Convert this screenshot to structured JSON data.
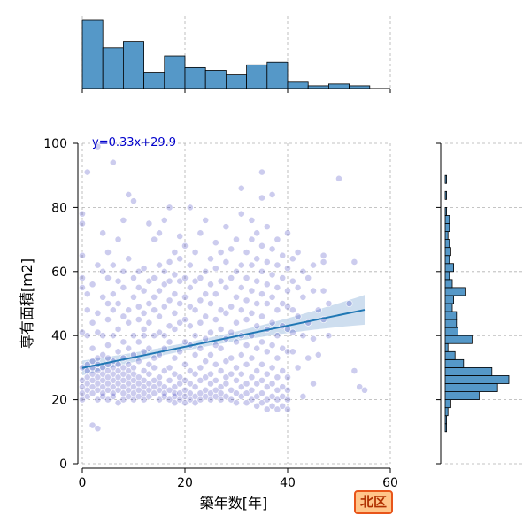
{
  "chart_data": {
    "type": "scatter",
    "xlabel": "築年数[年]",
    "ylabel": "専有面積[m2]",
    "xlim": [
      0,
      60
    ],
    "ylim": [
      0,
      100
    ],
    "xticks": [
      0,
      20,
      40,
      60
    ],
    "yticks": [
      0,
      20,
      40,
      60,
      80,
      100
    ],
    "grid": true,
    "regression": {
      "slope": 0.33,
      "intercept": 29.9,
      "x_range": [
        0,
        55
      ],
      "label": "y=0.33x+29.9"
    },
    "points": [
      [
        0,
        20
      ],
      [
        0,
        22
      ],
      [
        0,
        24
      ],
      [
        0,
        26
      ],
      [
        0,
        30
      ],
      [
        0,
        41
      ],
      [
        0,
        55
      ],
      [
        0,
        58
      ],
      [
        0,
        65
      ],
      [
        0,
        75
      ],
      [
        0,
        78
      ],
      [
        1,
        21
      ],
      [
        1,
        23
      ],
      [
        1,
        25
      ],
      [
        1,
        27
      ],
      [
        1,
        29
      ],
      [
        1,
        31
      ],
      [
        1,
        40
      ],
      [
        1,
        48
      ],
      [
        1,
        53
      ],
      [
        1,
        91
      ],
      [
        2,
        22
      ],
      [
        2,
        24
      ],
      [
        2,
        26
      ],
      [
        2,
        28
      ],
      [
        2,
        30
      ],
      [
        2,
        32
      ],
      [
        2,
        36
      ],
      [
        2,
        44
      ],
      [
        2,
        12
      ],
      [
        2,
        56
      ],
      [
        3,
        11
      ],
      [
        3,
        20
      ],
      [
        3,
        23
      ],
      [
        3,
        25
      ],
      [
        3,
        27
      ],
      [
        3,
        29
      ],
      [
        3,
        31
      ],
      [
        3,
        33
      ],
      [
        3,
        41
      ],
      [
        3,
        47
      ],
      [
        3,
        62
      ],
      [
        3,
        99
      ],
      [
        4,
        21
      ],
      [
        4,
        22
      ],
      [
        4,
        24
      ],
      [
        4,
        26
      ],
      [
        4,
        28
      ],
      [
        4,
        30
      ],
      [
        4,
        34
      ],
      [
        4,
        40
      ],
      [
        4,
        52
      ],
      [
        4,
        60
      ],
      [
        4,
        72
      ],
      [
        5,
        20
      ],
      [
        5,
        23
      ],
      [
        5,
        25
      ],
      [
        5,
        27
      ],
      [
        5,
        29
      ],
      [
        5,
        31
      ],
      [
        5,
        33
      ],
      [
        5,
        37
      ],
      [
        5,
        45
      ],
      [
        5,
        50
      ],
      [
        5,
        58
      ],
      [
        5,
        66
      ],
      [
        6,
        21
      ],
      [
        6,
        22
      ],
      [
        6,
        24
      ],
      [
        6,
        26
      ],
      [
        6,
        28
      ],
      [
        6,
        30
      ],
      [
        6,
        32
      ],
      [
        6,
        40
      ],
      [
        6,
        48
      ],
      [
        6,
        53
      ],
      [
        6,
        62
      ],
      [
        6,
        94
      ],
      [
        7,
        19
      ],
      [
        7,
        23
      ],
      [
        7,
        25
      ],
      [
        7,
        27
      ],
      [
        7,
        29
      ],
      [
        7,
        31
      ],
      [
        7,
        35
      ],
      [
        7,
        42
      ],
      [
        7,
        50
      ],
      [
        7,
        57
      ],
      [
        7,
        70
      ],
      [
        8,
        20
      ],
      [
        8,
        22
      ],
      [
        8,
        24
      ],
      [
        8,
        26
      ],
      [
        8,
        28
      ],
      [
        8,
        30
      ],
      [
        8,
        33
      ],
      [
        8,
        38
      ],
      [
        8,
        46
      ],
      [
        8,
        55
      ],
      [
        8,
        60
      ],
      [
        8,
        76
      ],
      [
        9,
        21
      ],
      [
        9,
        23
      ],
      [
        9,
        25
      ],
      [
        9,
        27
      ],
      [
        9,
        29
      ],
      [
        9,
        31
      ],
      [
        9,
        36
      ],
      [
        9,
        44
      ],
      [
        9,
        48
      ],
      [
        9,
        64
      ],
      [
        9,
        84
      ],
      [
        10,
        20
      ],
      [
        10,
        22
      ],
      [
        10,
        24
      ],
      [
        10,
        26
      ],
      [
        10,
        28
      ],
      [
        10,
        30
      ],
      [
        10,
        34
      ],
      [
        10,
        40
      ],
      [
        10,
        52
      ],
      [
        10,
        58
      ],
      [
        10,
        82
      ],
      [
        11,
        21
      ],
      [
        11,
        23
      ],
      [
        11,
        25
      ],
      [
        11,
        27
      ],
      [
        11,
        32
      ],
      [
        11,
        38
      ],
      [
        11,
        45
      ],
      [
        11,
        49
      ],
      [
        11,
        55
      ],
      [
        11,
        60
      ],
      [
        12,
        20
      ],
      [
        12,
        22
      ],
      [
        12,
        24
      ],
      [
        12,
        26
      ],
      [
        12,
        29
      ],
      [
        12,
        35
      ],
      [
        12,
        40
      ],
      [
        12,
        42
      ],
      [
        12,
        47
      ],
      [
        12,
        54
      ],
      [
        12,
        61
      ],
      [
        13,
        21
      ],
      [
        13,
        23
      ],
      [
        13,
        25
      ],
      [
        13,
        28
      ],
      [
        13,
        31
      ],
      [
        13,
        36
      ],
      [
        13,
        44
      ],
      [
        13,
        50
      ],
      [
        13,
        57
      ],
      [
        13,
        75
      ],
      [
        14,
        22
      ],
      [
        14,
        24
      ],
      [
        14,
        26
      ],
      [
        14,
        30
      ],
      [
        14,
        33
      ],
      [
        14,
        40
      ],
      [
        14,
        48
      ],
      [
        14,
        52
      ],
      [
        14,
        58
      ],
      [
        14,
        70
      ],
      [
        15,
        20
      ],
      [
        15,
        23
      ],
      [
        15,
        25
      ],
      [
        15,
        27
      ],
      [
        15,
        34
      ],
      [
        15,
        41
      ],
      [
        15,
        46
      ],
      [
        15,
        54
      ],
      [
        15,
        62
      ],
      [
        15,
        72
      ],
      [
        16,
        21
      ],
      [
        16,
        22
      ],
      [
        16,
        24
      ],
      [
        16,
        29
      ],
      [
        16,
        36
      ],
      [
        16,
        40
      ],
      [
        16,
        49
      ],
      [
        16,
        56
      ],
      [
        16,
        60
      ],
      [
        16,
        76
      ],
      [
        17,
        20
      ],
      [
        17,
        23
      ],
      [
        17,
        26
      ],
      [
        17,
        30
      ],
      [
        17,
        38
      ],
      [
        17,
        43
      ],
      [
        17,
        51
      ],
      [
        17,
        57
      ],
      [
        17,
        63
      ],
      [
        17,
        80
      ],
      [
        18,
        19
      ],
      [
        18,
        21
      ],
      [
        18,
        22
      ],
      [
        18,
        24
      ],
      [
        18,
        28
      ],
      [
        18,
        33
      ],
      [
        18,
        42
      ],
      [
        18,
        47
      ],
      [
        18,
        53
      ],
      [
        18,
        59
      ],
      [
        18,
        66
      ],
      [
        19,
        20
      ],
      [
        19,
        22
      ],
      [
        19,
        25
      ],
      [
        19,
        27
      ],
      [
        19,
        35
      ],
      [
        19,
        44
      ],
      [
        19,
        50
      ],
      [
        19,
        57
      ],
      [
        19,
        64
      ],
      [
        19,
        71
      ],
      [
        20,
        19
      ],
      [
        20,
        21
      ],
      [
        20,
        23
      ],
      [
        20,
        26
      ],
      [
        20,
        31
      ],
      [
        20,
        38
      ],
      [
        20,
        45
      ],
      [
        20,
        52
      ],
      [
        20,
        58
      ],
      [
        20,
        68
      ],
      [
        21,
        20
      ],
      [
        21,
        22
      ],
      [
        21,
        25
      ],
      [
        21,
        29
      ],
      [
        21,
        37
      ],
      [
        21,
        43
      ],
      [
        21,
        49
      ],
      [
        21,
        55
      ],
      [
        21,
        62
      ],
      [
        21,
        80
      ],
      [
        22,
        19
      ],
      [
        22,
        21
      ],
      [
        22,
        24
      ],
      [
        22,
        28
      ],
      [
        22,
        34
      ],
      [
        22,
        40
      ],
      [
        22,
        48
      ],
      [
        22,
        57
      ],
      [
        22,
        66
      ],
      [
        23,
        20
      ],
      [
        23,
        22
      ],
      [
        23,
        26
      ],
      [
        23,
        30
      ],
      [
        23,
        36
      ],
      [
        23,
        44
      ],
      [
        23,
        51
      ],
      [
        23,
        58
      ],
      [
        23,
        72
      ],
      [
        24,
        21
      ],
      [
        24,
        23
      ],
      [
        24,
        27
      ],
      [
        24,
        32
      ],
      [
        24,
        39
      ],
      [
        24,
        46
      ],
      [
        24,
        53
      ],
      [
        24,
        60
      ],
      [
        24,
        76
      ],
      [
        25,
        20
      ],
      [
        25,
        22
      ],
      [
        25,
        25
      ],
      [
        25,
        28
      ],
      [
        25,
        34
      ],
      [
        25,
        41
      ],
      [
        25,
        50
      ],
      [
        25,
        56
      ],
      [
        25,
        64
      ],
      [
        26,
        21
      ],
      [
        26,
        23
      ],
      [
        26,
        26
      ],
      [
        26,
        31
      ],
      [
        26,
        37
      ],
      [
        26,
        45
      ],
      [
        26,
        53
      ],
      [
        26,
        61
      ],
      [
        26,
        69
      ],
      [
        27,
        20
      ],
      [
        27,
        22
      ],
      [
        27,
        24
      ],
      [
        27,
        29
      ],
      [
        27,
        36
      ],
      [
        27,
        42
      ],
      [
        27,
        48
      ],
      [
        27,
        57
      ],
      [
        27,
        66
      ],
      [
        28,
        21
      ],
      [
        28,
        25
      ],
      [
        28,
        27
      ],
      [
        28,
        32
      ],
      [
        28,
        39
      ],
      [
        28,
        47
      ],
      [
        28,
        55
      ],
      [
        28,
        63
      ],
      [
        28,
        74
      ],
      [
        29,
        20
      ],
      [
        29,
        23
      ],
      [
        29,
        28
      ],
      [
        29,
        33
      ],
      [
        29,
        41
      ],
      [
        29,
        49
      ],
      [
        29,
        58
      ],
      [
        29,
        67
      ],
      [
        30,
        19
      ],
      [
        30,
        22
      ],
      [
        30,
        26
      ],
      [
        30,
        30
      ],
      [
        30,
        38
      ],
      [
        30,
        44
      ],
      [
        30,
        52
      ],
      [
        30,
        60
      ],
      [
        30,
        70
      ],
      [
        31,
        21
      ],
      [
        31,
        24
      ],
      [
        31,
        28
      ],
      [
        31,
        34
      ],
      [
        31,
        40
      ],
      [
        31,
        48
      ],
      [
        31,
        55
      ],
      [
        31,
        62
      ],
      [
        31,
        78
      ],
      [
        31,
        86
      ],
      [
        32,
        19
      ],
      [
        32,
        22
      ],
      [
        32,
        25
      ],
      [
        32,
        31
      ],
      [
        32,
        37
      ],
      [
        32,
        45
      ],
      [
        32,
        51
      ],
      [
        32,
        58
      ],
      [
        32,
        66
      ],
      [
        33,
        20
      ],
      [
        33,
        23
      ],
      [
        33,
        27
      ],
      [
        33,
        33
      ],
      [
        33,
        40
      ],
      [
        33,
        47
      ],
      [
        33,
        54
      ],
      [
        33,
        62
      ],
      [
        33,
        70
      ],
      [
        33,
        76
      ],
      [
        34,
        18
      ],
      [
        34,
        21
      ],
      [
        34,
        25
      ],
      [
        34,
        29
      ],
      [
        34,
        36
      ],
      [
        34,
        43
      ],
      [
        34,
        50
      ],
      [
        34,
        57
      ],
      [
        34,
        64
      ],
      [
        34,
        72
      ],
      [
        35,
        19
      ],
      [
        35,
        22
      ],
      [
        35,
        26
      ],
      [
        35,
        31
      ],
      [
        35,
        38
      ],
      [
        35,
        46
      ],
      [
        35,
        53
      ],
      [
        35,
        60
      ],
      [
        35,
        68
      ],
      [
        35,
        83
      ],
      [
        35,
        91
      ],
      [
        36,
        17
      ],
      [
        36,
        20
      ],
      [
        36,
        24
      ],
      [
        36,
        28
      ],
      [
        36,
        35
      ],
      [
        36,
        42
      ],
      [
        36,
        50
      ],
      [
        36,
        56
      ],
      [
        36,
        63
      ],
      [
        36,
        74
      ],
      [
        37,
        18
      ],
      [
        37,
        21
      ],
      [
        37,
        25
      ],
      [
        37,
        30
      ],
      [
        37,
        37
      ],
      [
        37,
        44
      ],
      [
        37,
        52
      ],
      [
        37,
        59
      ],
      [
        37,
        67
      ],
      [
        37,
        84
      ],
      [
        38,
        17
      ],
      [
        38,
        20
      ],
      [
        38,
        23
      ],
      [
        38,
        27
      ],
      [
        38,
        33
      ],
      [
        38,
        40
      ],
      [
        38,
        48
      ],
      [
        38,
        55
      ],
      [
        38,
        62
      ],
      [
        38,
        70
      ],
      [
        39,
        18
      ],
      [
        39,
        21
      ],
      [
        39,
        24
      ],
      [
        39,
        29
      ],
      [
        39,
        36
      ],
      [
        39,
        43
      ],
      [
        39,
        50
      ],
      [
        39,
        58
      ],
      [
        39,
        65
      ],
      [
        40,
        17
      ],
      [
        40,
        20
      ],
      [
        40,
        23
      ],
      [
        40,
        27
      ],
      [
        40,
        35
      ],
      [
        40,
        42
      ],
      [
        40,
        49
      ],
      [
        40,
        54
      ],
      [
        40,
        61
      ],
      [
        40,
        72
      ],
      [
        41,
        35
      ],
      [
        41,
        41
      ],
      [
        41,
        48
      ],
      [
        41,
        57
      ],
      [
        41,
        64
      ],
      [
        42,
        30
      ],
      [
        42,
        46
      ],
      [
        42,
        55
      ],
      [
        42,
        66
      ],
      [
        43,
        21
      ],
      [
        43,
        40
      ],
      [
        43,
        52
      ],
      [
        43,
        60
      ],
      [
        44,
        33
      ],
      [
        44,
        44
      ],
      [
        44,
        58
      ],
      [
        45,
        25
      ],
      [
        45,
        39
      ],
      [
        45,
        54
      ],
      [
        45,
        62
      ],
      [
        46,
        34
      ],
      [
        46,
        48
      ],
      [
        47,
        45
      ],
      [
        47,
        54
      ],
      [
        47,
        63
      ],
      [
        47,
        65
      ],
      [
        48,
        40
      ],
      [
        48,
        50
      ],
      [
        50,
        89
      ],
      [
        52,
        50
      ],
      [
        53,
        29
      ],
      [
        53,
        63
      ],
      [
        54,
        24
      ],
      [
        55,
        23
      ]
    ],
    "x_histogram": {
      "bins": [
        0,
        4,
        8,
        12,
        16,
        20,
        24,
        28,
        32,
        36,
        40,
        44,
        48,
        52,
        56,
        60
      ],
      "counts": [
        75,
        45,
        52,
        18,
        36,
        23,
        20,
        15,
        26,
        29,
        7,
        3,
        5,
        3,
        0
      ]
    },
    "y_histogram": {
      "bins": [
        10,
        12.5,
        15,
        17.5,
        20,
        22.5,
        25,
        27.5,
        30,
        32.5,
        35,
        37.5,
        40,
        42.5,
        45,
        47.5,
        50,
        52.5,
        55,
        57.5,
        60,
        62.5,
        65,
        67.5,
        70,
        72.5,
        75,
        77.5,
        80,
        82.5,
        85,
        87.5,
        90
      ],
      "counts": [
        1,
        1,
        2,
        4,
        24,
        37,
        45,
        33,
        13,
        7,
        2,
        19,
        9,
        8,
        8,
        5,
        6,
        14,
        5,
        3,
        6,
        3,
        4,
        3,
        2,
        3,
        3,
        1,
        0,
        1,
        0,
        1
      ]
    }
  },
  "colors": {
    "hist_fill": "#5598c8",
    "hist_edge": "#000000",
    "scatter_fill": "#0000aa",
    "regression": "#1f77b4",
    "ci_band": "#c5d8ec",
    "grid": "#b0b0b0"
  },
  "badge": {
    "label": "北区"
  }
}
